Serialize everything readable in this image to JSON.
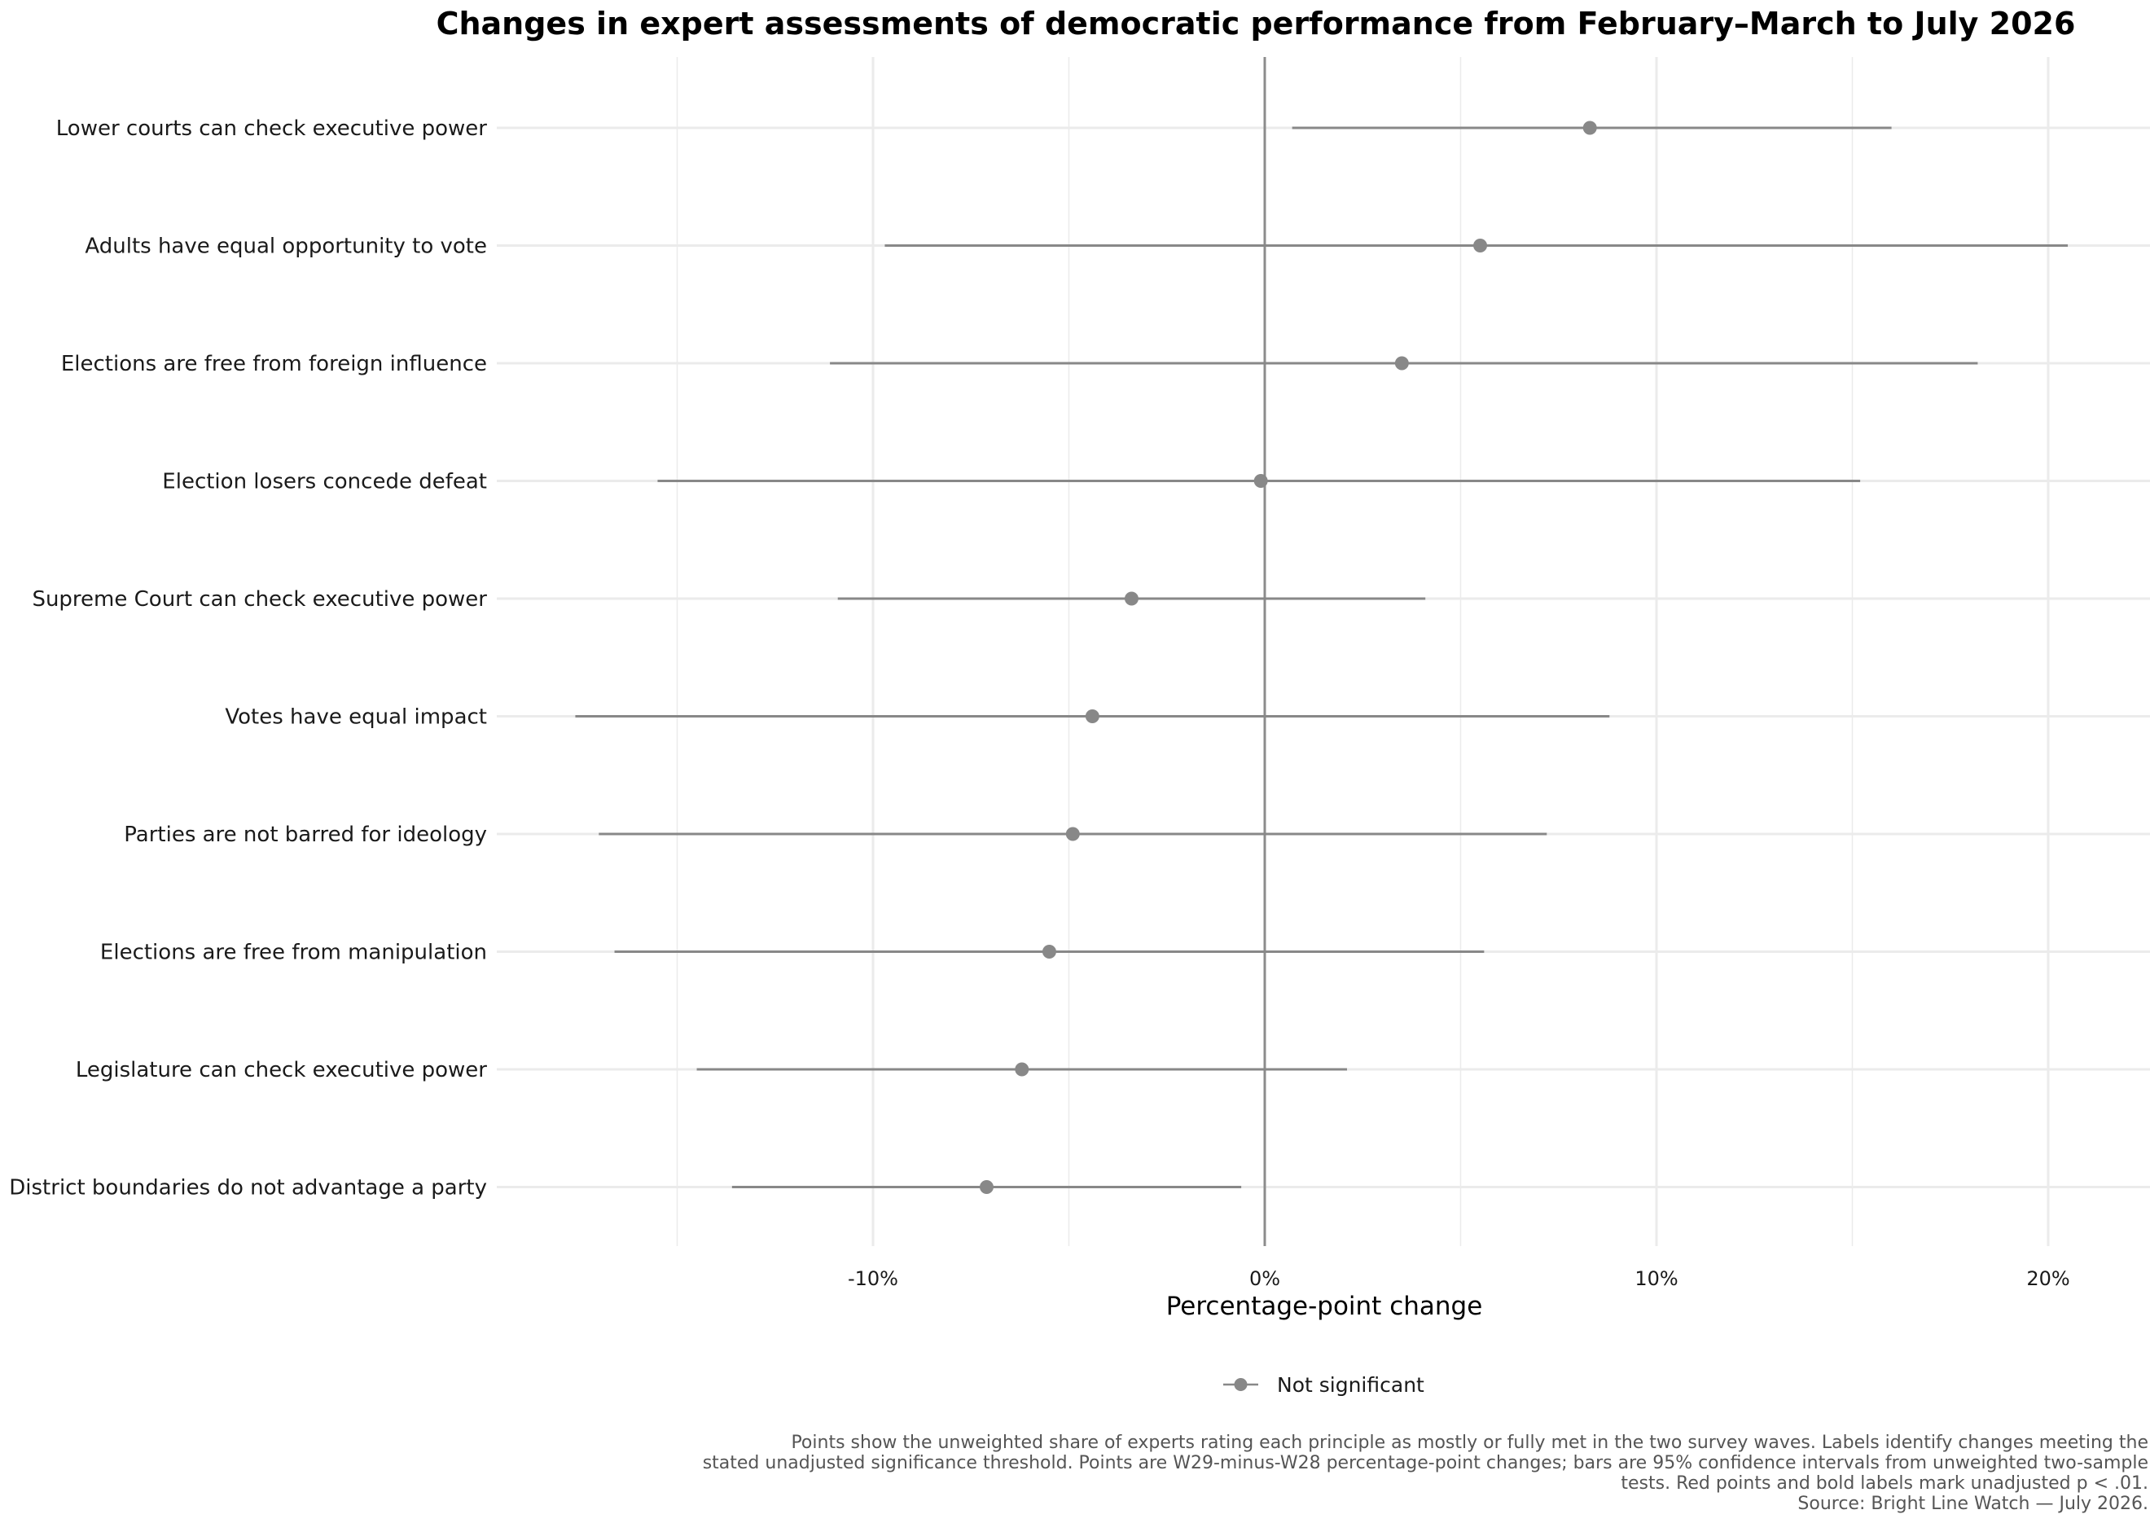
{
  "chart_data": {
    "type": "scatter",
    "title": "Changes in expert assessments of democratic performance from February–March to July 2026",
    "xlabel": "Percentage-point change",
    "ylabel": "",
    "xlim": [
      -19.5,
      22.5
    ],
    "x_ticks": [
      -10,
      0,
      10,
      20
    ],
    "x_tick_labels": [
      "-10%",
      "0%",
      "10%",
      "20%"
    ],
    "grid": true,
    "legend": {
      "position": "bottom",
      "entries": [
        "Not significant"
      ]
    },
    "colors": {
      "point": "#888888",
      "grid": "#ebebeb",
      "zero_line": "#8c8c8c"
    },
    "categories": [
      "Lower courts can check executive power",
      "Adults have equal opportunity to vote",
      "Elections are free from foreign influence",
      "Election losers concede defeat",
      "Supreme Court can check executive power",
      "Votes have equal impact",
      "Parties are not barred for ideology",
      "Elections are free from manipulation",
      "Legislature can check executive power",
      "District boundaries do not advantage a party"
    ],
    "series": [
      {
        "name": "Not significant",
        "values": [
          8.3,
          5.5,
          3.5,
          -0.1,
          -3.4,
          -4.4,
          -4.9,
          -5.5,
          -6.2,
          -7.1
        ],
        "ci_low": [
          0.7,
          -9.7,
          -11.1,
          -15.5,
          -10.9,
          -17.6,
          -17.0,
          -16.6,
          -14.5,
          -13.6
        ],
        "ci_high": [
          16.0,
          20.5,
          18.2,
          15.2,
          4.1,
          8.8,
          7.2,
          5.6,
          2.1,
          -0.6
        ]
      }
    ],
    "caption": [
      "Points show the unweighted share of experts rating each principle as mostly or fully met in the two survey waves. Labels identify changes meeting the",
      "stated unadjusted significance threshold. Points are W29-minus-W28 percentage-point changes; bars are 95% confidence intervals from unweighted two-sample",
      "tests. Red points and bold labels mark unadjusted p < .01.",
      "Source: Bright Line Watch — July 2026."
    ]
  }
}
